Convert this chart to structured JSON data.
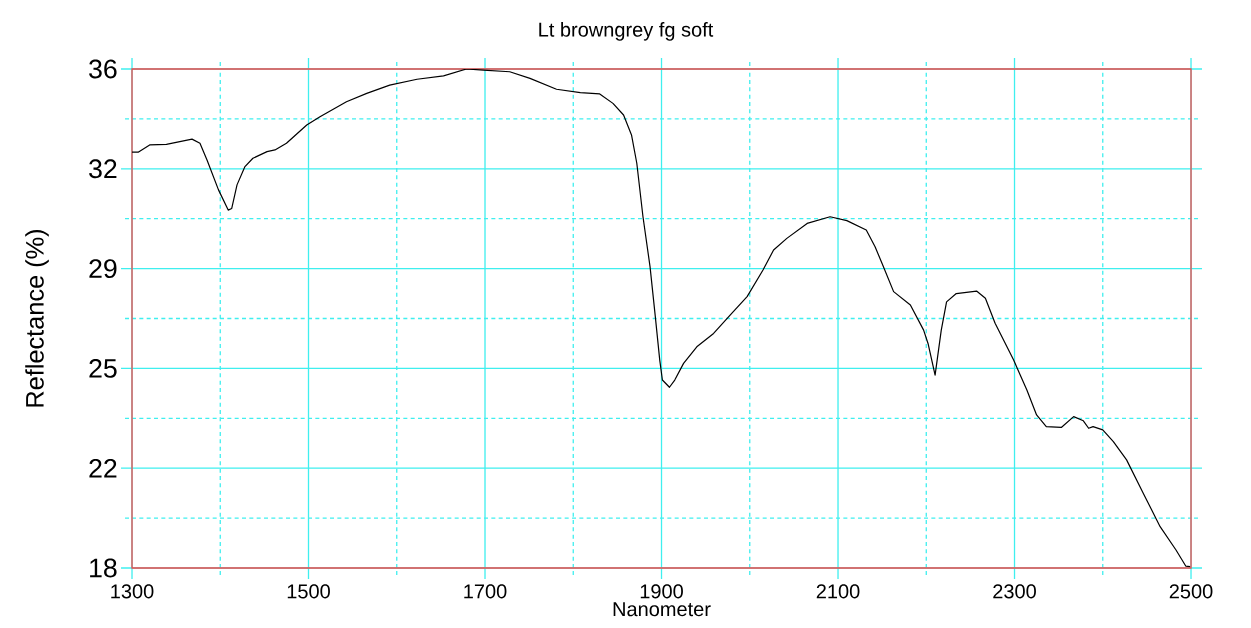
{
  "chart_data": {
    "type": "line",
    "title": "Lt browngrey fg soft",
    "xlabel": "Nanometer",
    "ylabel": "Reflectance (%)",
    "x": [
      1300,
      1307,
      1320,
      1339,
      1368,
      1377,
      1385,
      1398,
      1409,
      1413,
      1419,
      1428,
      1437,
      1453,
      1462,
      1475,
      1498,
      1513,
      1543,
      1566,
      1592,
      1623,
      1653,
      1679,
      1698,
      1728,
      1751,
      1781,
      1808,
      1830,
      1845,
      1857,
      1866,
      1872,
      1879,
      1887,
      1893,
      1898,
      1901,
      1909,
      1915,
      1925,
      1940,
      1959,
      1978,
      1997,
      2015,
      2027,
      2042,
      2065,
      2091,
      2110,
      2132,
      2142,
      2151,
      2163,
      2182,
      2197,
      2202,
      2210,
      2217,
      2223,
      2234,
      2257,
      2267,
      2278,
      2299,
      2314,
      2325,
      2336,
      2353,
      2367,
      2378,
      2384,
      2389,
      2400,
      2412,
      2427,
      2446,
      2465,
      2483,
      2494,
      2499
    ],
    "series": [
      {
        "color": "#000000",
        "values": [
          33.0,
          33.0,
          33.26,
          33.28,
          33.47,
          33.32,
          32.72,
          31.64,
          30.91,
          30.97,
          31.82,
          32.48,
          32.78,
          33.02,
          33.08,
          33.32,
          33.98,
          34.28,
          34.82,
          35.12,
          35.42,
          35.63,
          35.75,
          36.0,
          35.96,
          35.9,
          35.66,
          35.27,
          35.15,
          35.1,
          34.76,
          34.34,
          33.62,
          32.6,
          30.67,
          28.87,
          27.06,
          25.5,
          24.78,
          24.52,
          24.78,
          25.38,
          25.98,
          26.46,
          27.13,
          27.79,
          28.75,
          29.47,
          29.89,
          30.43,
          30.67,
          30.53,
          30.19,
          29.59,
          28.9,
          27.97,
          27.49,
          26.58,
          26.1,
          24.96,
          26.58,
          27.6,
          27.9,
          27.99,
          27.73,
          26.83,
          25.5,
          24.42,
          23.52,
          23.1,
          23.07,
          23.46,
          23.31,
          23.04,
          23.1,
          22.98,
          22.56,
          21.9,
          20.69,
          19.49,
          18.65,
          18.07,
          18.05
        ]
      }
    ],
    "xlim": [
      1300,
      2500
    ],
    "ylim": [
      18,
      36
    ],
    "xticks": [
      1300,
      {
        "value": 1400,
        "label": null
      },
      1500,
      {
        "value": 1600,
        "label": null
      },
      1700,
      {
        "value": 1800,
        "label": null
      },
      1900,
      {
        "value": 2000,
        "label": null
      },
      2100,
      {
        "value": 2200,
        "label": null
      },
      2300,
      {
        "value": 2400,
        "label": null
      },
      2500
    ],
    "yticks": [
      18,
      {
        "value": 19.8,
        "label": null
      },
      {
        "value": 21.6,
        "label": "22"
      },
      {
        "value": 23.4,
        "label": null
      },
      {
        "value": 25.2,
        "label": "25"
      },
      {
        "value": 27,
        "label": null
      },
      {
        "value": 28.8,
        "label": "29"
      },
      {
        "value": 30.6,
        "label": null
      },
      {
        "value": 32.4,
        "label": "32"
      },
      {
        "value": 34.2,
        "label": null
      },
      36
    ],
    "grid": true,
    "line_style": "solid"
  }
}
